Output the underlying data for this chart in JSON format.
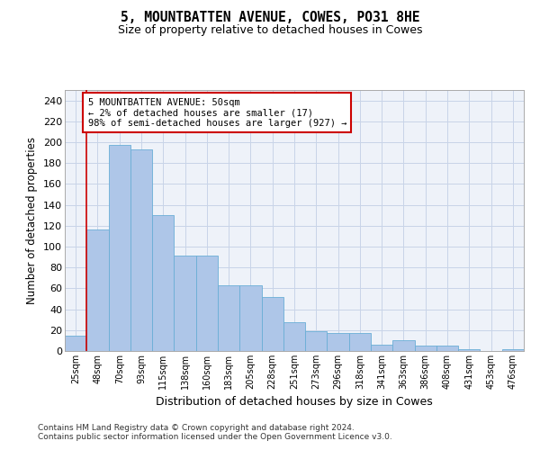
{
  "title1": "5, MOUNTBATTEN AVENUE, COWES, PO31 8HE",
  "title2": "Size of property relative to detached houses in Cowes",
  "xlabel": "Distribution of detached houses by size in Cowes",
  "ylabel": "Number of detached properties",
  "categories": [
    "25sqm",
    "48sqm",
    "70sqm",
    "93sqm",
    "115sqm",
    "138sqm",
    "160sqm",
    "183sqm",
    "205sqm",
    "228sqm",
    "251sqm",
    "273sqm",
    "296sqm",
    "318sqm",
    "341sqm",
    "363sqm",
    "386sqm",
    "408sqm",
    "431sqm",
    "453sqm",
    "476sqm"
  ],
  "values": [
    15,
    116,
    197,
    193,
    130,
    91,
    91,
    63,
    63,
    52,
    28,
    19,
    17,
    17,
    6,
    10,
    5,
    5,
    2,
    0,
    2
  ],
  "bar_color": "#aec6e8",
  "bar_edge_color": "#6aaed6",
  "grid_color": "#c8d4e8",
  "bg_color": "#eef2f9",
  "annotation_text": "5 MOUNTBATTEN AVENUE: 50sqm\n← 2% of detached houses are smaller (17)\n98% of semi-detached houses are larger (927) →",
  "annotation_box_color": "#ffffff",
  "annotation_edge_color": "#cc0000",
  "marker_line_color": "#cc0000",
  "footer1": "Contains HM Land Registry data © Crown copyright and database right 2024.",
  "footer2": "Contains public sector information licensed under the Open Government Licence v3.0.",
  "ylim": [
    0,
    250
  ],
  "yticks": [
    0,
    20,
    40,
    60,
    80,
    100,
    120,
    140,
    160,
    180,
    200,
    220,
    240
  ]
}
